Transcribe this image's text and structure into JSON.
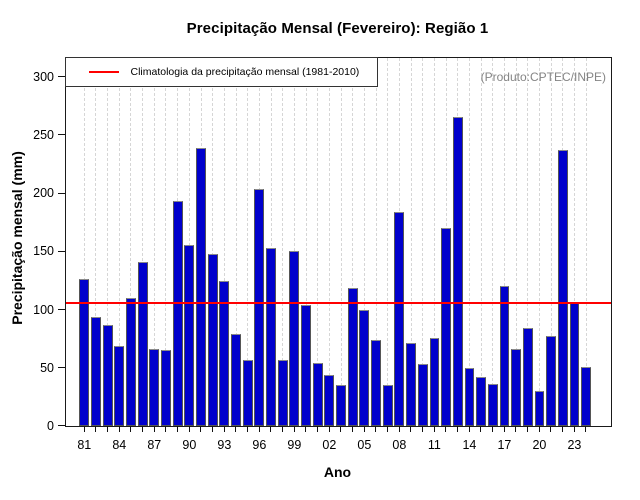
{
  "chart_data": {
    "type": "bar",
    "title": "Precipitação Mensal (Fevereiro): Região 1",
    "xlabel": "Ano",
    "ylabel": "Precipitação mensal (mm)",
    "annotation": "(Produto:CPTEC/INPE)",
    "bar_color": "#0000cc",
    "grid": "vertical-dashed",
    "legend_position": "top-left",
    "ylim": [
      0,
      316
    ],
    "yticks": [
      0,
      50,
      100,
      150,
      200,
      250,
      300
    ],
    "xtick_every": 3,
    "xtick_labels": [
      "81",
      "84",
      "87",
      "90",
      "93",
      "96",
      "99",
      "02",
      "05",
      "08",
      "11",
      "14",
      "17",
      "20",
      "23"
    ],
    "years": [
      1981,
      1982,
      1983,
      1984,
      1985,
      1986,
      1987,
      1988,
      1989,
      1990,
      1991,
      1992,
      1993,
      1994,
      1995,
      1996,
      1997,
      1998,
      1999,
      2000,
      2001,
      2002,
      2003,
      2004,
      2005,
      2006,
      2007,
      2008,
      2009,
      2010,
      2011,
      2012,
      2013,
      2014,
      2015,
      2016,
      2017,
      2018,
      2019,
      2020,
      2021,
      2022,
      2023,
      2024
    ],
    "values": [
      126,
      94,
      87,
      69,
      110,
      141,
      66,
      65,
      193,
      156,
      239,
      148,
      125,
      79,
      57,
      204,
      153,
      57,
      150,
      104,
      54,
      44,
      35,
      119,
      100,
      74,
      35,
      184,
      71,
      53,
      76,
      170,
      266,
      50,
      42,
      36,
      120,
      66,
      84,
      30,
      77,
      237,
      106,
      51
    ],
    "climatology": {
      "value": 106,
      "color": "#ff0000",
      "label": "Climatologia da precipitação mensal (1981-2010)"
    }
  }
}
